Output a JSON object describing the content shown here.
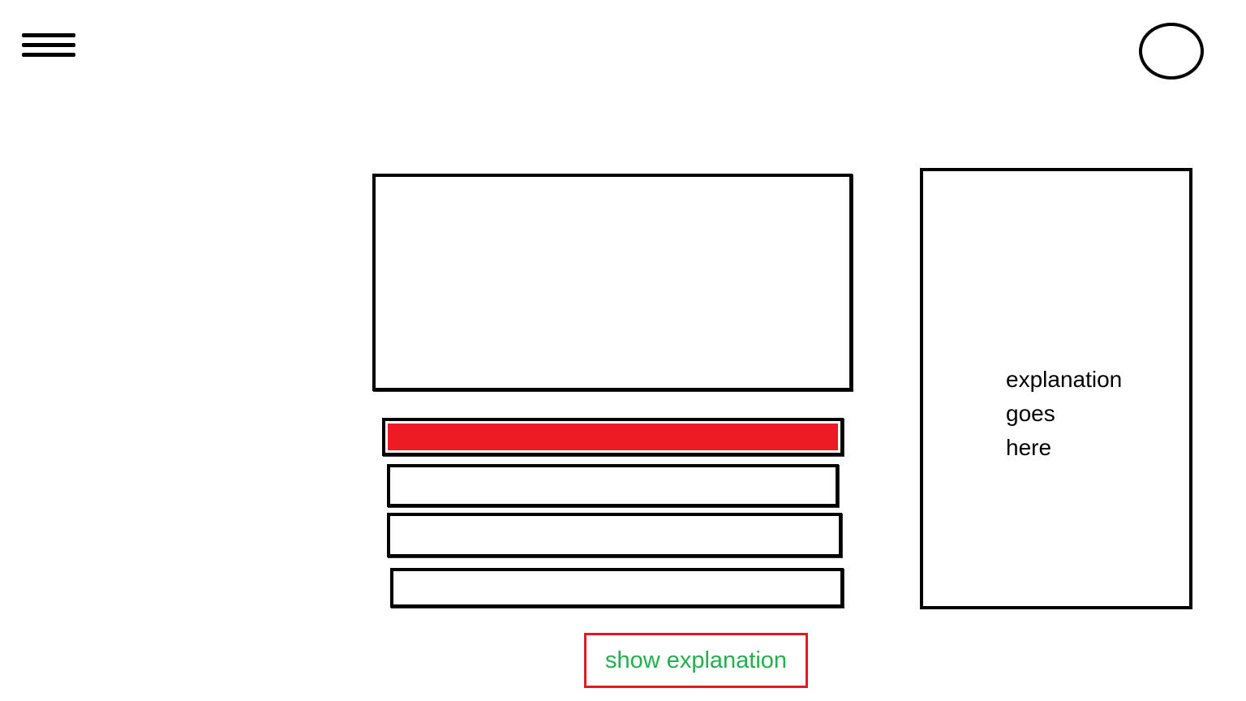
{
  "header": {
    "menu_icon": "hamburger-menu-icon",
    "profile_icon": "profile-circle-icon"
  },
  "question": {
    "text": ""
  },
  "answers": {
    "items": [
      {
        "label": "",
        "selected": true
      },
      {
        "label": "",
        "selected": false
      },
      {
        "label": "",
        "selected": false
      },
      {
        "label": "",
        "selected": false
      }
    ]
  },
  "explanation": {
    "text": "explanation\ngoes\nhere"
  },
  "actions": {
    "show_explanation_label": "show explanation"
  },
  "colors": {
    "selected_answer": "#ed1c24",
    "button_text": "#22b14c",
    "button_border": "#e01b24",
    "outline": "#000000"
  }
}
